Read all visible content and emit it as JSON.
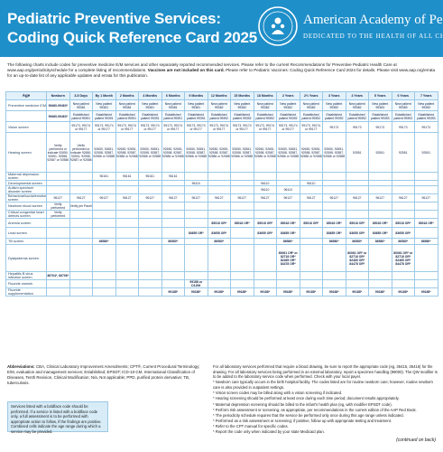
{
  "header": {
    "title_line1": "Pediatric Preventive Services:",
    "title_line2": "Coding Quick Reference Card 2025",
    "org_name": "American Academy of Pediatrics",
    "org_tagline": "DEDICATED TO THE HEALTH OF ALL CHILDREN",
    "banner_color": "#1f8fc9",
    "logo_icon": "aap-logo-icon"
  },
  "intro": {
    "text1": "The following charts include codes for preventive medicine E/M services and other separately reported recommended services. Please refer to the current Recommendations for Preventive Pediatric Health Care at www.aap.org/periodicityschedule for a complete listing of recommendations.",
    "bold": "Vaccines are not included on this card.",
    "text2": "Please refer to Pediatric Vaccines: Coding Quick Reference Card 2024 for details. Please visit www.aap.org/errata for an up-to-date list of any applicable updates and errata for this publication."
  },
  "table": {
    "age_label": "Age",
    "columns": [
      "Newborn",
      "3-5 Days",
      "By 1 Month",
      "2 Months",
      "4 Months",
      "6 Months",
      "9 Months",
      "12 Months",
      "15 Months",
      "18 Months",
      "2 Years",
      "2½ Years",
      "3 Years",
      "4 Years",
      "5 Years",
      "6 Years",
      "7 Years"
    ],
    "rows": [
      {
        "label": "Preventive medicine E/M",
        "cells": [
          "99460-99463*",
          "New patient 99381",
          "New patient 99381",
          "New patient 99381",
          "New patient 99381",
          "New patient 99381",
          "New patient 99381",
          "New patient 99382",
          "New patient 99382",
          "New patient 99382",
          "New patient 99382",
          "New patient 99382",
          "New patient 99382",
          "New patient 99382",
          "New patient 99383",
          "New patient 99383",
          "New patient 99383"
        ]
      },
      {
        "label": "",
        "cells": [
          "99460-99463*",
          "Established patient 99391",
          "Established patient 99391",
          "Established patient 99391",
          "Established patient 99391",
          "Established patient 99391",
          "Established patient 99391",
          "Established patient 99392",
          "Established patient 99392",
          "Established patient 99392",
          "Established patient 99392",
          "Established patient 99392",
          "Established patient 99392",
          "Established patient 99392",
          "Established patient 99393",
          "Established patient 99393",
          "Established patient 99393"
        ]
      },
      {
        "label": "Vision screen",
        "cells": [
          "",
          "99173, 99174 or 99177",
          "99173, 99174 or 99177",
          "99173, 99174 or 99177",
          "99173, 99174 or 99177",
          "99173, 99174 or 99177",
          "99173, 99174 or 99177",
          "99173, 99174 or 99177",
          "99173, 99174 or 99177",
          "99173, 99174 or 99177",
          "99173, 99174 or 99177",
          "99173, 99174 or 99177",
          "99173",
          "99173",
          "99173",
          "99173",
          "99173"
        ]
      },
      {
        "label": "Hearing screen",
        "cells": [
          "Verify performed or indicate 92650, 92651, 92558, 92587 or 92586",
          "Verify performed or indicate 92650, 92651, 92558, 92587 or 92586",
          "92650, 92651, 92558, 92587, 92586 or 92588",
          "92650, 92651, 92558, 92587, 92586 or 92588",
          "92650, 92651, 92558, 92587, 92586 or 92588",
          "92650, 92651, 92558, 92587, 92586 or 92588",
          "92650, 92651, 92558, 92587, 92586 or 92588",
          "92650, 92651, 92558, 92587, 92586 or 92588",
          "92650, 92651, 92558, 92587, 92586 or 92588",
          "92650, 92651, 92558, 92587, 92586 or 92588",
          "92650, 92651, 92558, 92587, 92586 or 92588",
          "92650, 92651, 92558, 92587, 92586 or 92588",
          "92650, 92651, 92558, 92587, 92586 or 92588",
          "92551",
          "92551",
          "92551",
          "92551"
        ]
      },
      {
        "label": "Maternal depression screen",
        "cells": [
          "",
          "",
          "96161",
          "96161",
          "96161",
          "96161",
          "",
          "",
          "",
          "",
          "",
          "",
          "",
          "",
          "",
          "",
          ""
        ]
      },
      {
        "label": "Developmental screen",
        "cells": [
          "",
          "",
          "",
          "",
          "",
          "",
          "96110",
          "",
          "",
          "96110",
          "",
          "96110",
          "",
          "",
          "",
          "",
          ""
        ]
      },
      {
        "label": "Autism spectrum disorder screen",
        "cells": [
          "",
          "",
          "",
          "",
          "",
          "",
          "",
          "",
          "",
          "96110",
          "96110",
          "",
          "",
          "",
          "",
          "",
          ""
        ]
      },
      {
        "label": "Behavioral/social/emotional screen",
        "cells": [
          "96127",
          "96127",
          "96127",
          "96127",
          "96127",
          "96127",
          "96127",
          "96127",
          "96127",
          "96127",
          "96127",
          "96127",
          "96127",
          "96127",
          "96127",
          "96127",
          "96127"
        ]
      },
      {
        "label": "Newborn blood screen",
        "cells": [
          "Verify performed",
          "Verify per Panel",
          "",
          "",
          "",
          "",
          "",
          "",
          "",
          "",
          "",
          "",
          "",
          "",
          "",
          "",
          ""
        ]
      },
      {
        "label": "Critical congenital heart defects screen",
        "cells": [
          "Verify performed",
          "",
          "",
          "",
          "",
          "",
          "",
          "",
          "",
          "",
          "",
          "",
          "",
          "",
          "",
          "",
          ""
        ]
      },
      {
        "label": "Anemia screen",
        "cells": [
          "",
          "",
          "",
          "",
          "",
          "",
          "",
          "85018 OR*",
          "85018 OR*",
          "85018 OR*",
          "85018 OR*",
          "85018 OR*",
          "85018 OR*",
          "85018 OR*",
          "85018 OR*",
          "85018 OR*",
          "85018 OR*"
        ]
      },
      {
        "label": "Lead screen",
        "cells": [
          "",
          "",
          "",
          "",
          "",
          "",
          "83655 OR*",
          "83655 OR*",
          "",
          "83655 OR*",
          "83655 OR*",
          "",
          "83655 OR*",
          "83655 OR*",
          "83655 OR*",
          "83655 OR*",
          ""
        ]
      },
      {
        "label": "TB screen",
        "cells": [
          "",
          "",
          "86580*",
          "",
          "",
          "86580*",
          "",
          "86580*",
          "",
          "",
          "86580*",
          "",
          "86580*",
          "86580*",
          "86580*",
          "86580*",
          "86580*"
        ]
      },
      {
        "label": "Dyslipidemia screen",
        "cells": [
          "",
          "",
          "",
          "",
          "",
          "",
          "",
          "",
          "",
          "",
          "80061 OR* or 82718 OR* 82465 OR* 84478 OR*",
          "",
          "",
          "80061 OR* or 82718 OR* 82465 OR* 84478 OR*",
          "",
          "80061 OR* or 82718 OR* 82465 OR* 84478 OR*",
          ""
        ]
      },
      {
        "label": "Hepatitis B virus infection screen",
        "cells": [
          "86704*, 86706*",
          "",
          "",
          "",
          "",
          "",
          "",
          "",
          "",
          "",
          "",
          "",
          "",
          "",
          "",
          "",
          ""
        ]
      },
      {
        "label": "Fluoride varnish",
        "cells": [
          "",
          "",
          "",
          "",
          "",
          "",
          "99188 or D1206",
          "",
          "",
          "",
          "",
          "",
          "",
          "",
          "",
          "",
          ""
        ]
      },
      {
        "label": "Fluoride supplementation",
        "cells": [
          "",
          "",
          "",
          "",
          "",
          "99188*",
          "99188*",
          "99188*",
          "99188*",
          "99188*",
          "99188*",
          "99188*",
          "99188*",
          "99188*",
          "99188*",
          "99188*",
          "99188*"
        ]
      }
    ]
  },
  "abbreviations": {
    "label": "Abbreviations:",
    "text": "CBA, Clinical Laboratory Improvement Amendments; CPT®, Current Procedural Terminology; E/M, evaluation and management services; Established, EPSDT; ICD-10-CM, International Classification of Diseases, Tenth Revision, Clinical Modification; N/a, Not applicable; PPD, purified protein derivative; TB, tuberculosis."
  },
  "legend_box": {
    "text": "Services listed with a boldface code should be performed. If a service is listed with a boldface code only, a full assessment is to be performed with appropriate action to follow, if the findings are positive. Combined cells indicate the age range during which a service may be provided."
  },
  "notes": [
    "For all laboratory services performed that require a blood drawing, be sure to report the appropriate code (eg, 36415, 36416) for the drawing. For all laboratory services being performed in an external laboratory, report a specimen handling (99000). The QW modifier is to be added to the laboratory service code when performed. Check with your local payer.",
    "* Newborn care typically occurs in the birth hospital facility. The codes listed are for routine newborn care; however, routine newborn care is also provided in outpatient settings.",
    "* Vision screen codes may be billed along with a vision screening if indicated.",
    "* Hearing screening should be performed at least once during each time period; document results appropriately.",
    "* Maternal depression screening should be billed to the infant's health plan (eg, with modifier EPSDT code).",
    "* Perform risk assessment or screening, as appropriate, per recommendations in the current edition of the AAP Red Book.",
    "* The periodicity schedule requires that the service be performed only once during this age range unless indicated.",
    "* Performed as a risk assessment or screening; if positive, follow up with appropriate testing and treatment.",
    "* Refer to the CPT manual for specific codes.",
    "* Report the code only when indicated by your state Medicaid plan."
  ],
  "continued": "(continued on back)"
}
